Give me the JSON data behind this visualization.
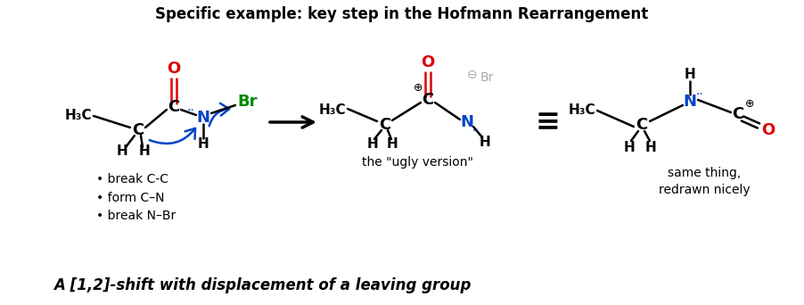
{
  "title": "Specific example: key step in the Hofmann Rearrangement",
  "footer": "A [1,2]-shift with displacement of a leaving group",
  "caption_ugly": "the \"ugly version\"",
  "caption_nice": "same thing,\nredrawn nicely",
  "bullet_text": "• break C-C\n• form C–N\n• break N–Br",
  "bg_color": "#ffffff",
  "black": "#000000",
  "red": "#dd0000",
  "green": "#008800",
  "blue": "#0044cc",
  "gray": "#aaaaaa"
}
